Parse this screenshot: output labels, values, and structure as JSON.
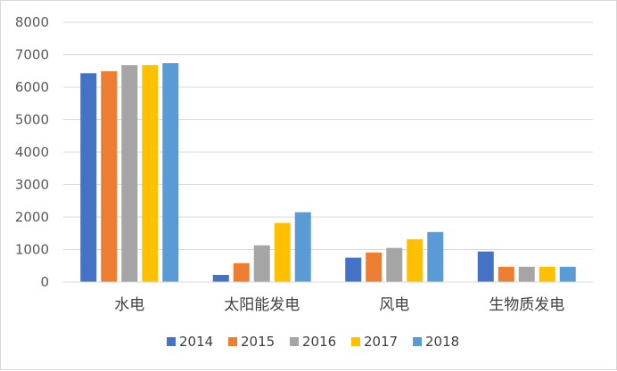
{
  "chart_data": {
    "type": "bar",
    "title": "",
    "xlabel": "",
    "ylabel": "",
    "categories": [
      "水电",
      "太阳能发电",
      "风电",
      "生物质发电"
    ],
    "series": [
      {
        "name": "2014",
        "color": "#4472c4",
        "values": [
          6430,
          220,
          750,
          940
        ]
      },
      {
        "name": "2015",
        "color": "#ed7d31",
        "values": [
          6490,
          580,
          910,
          470
        ]
      },
      {
        "name": "2016",
        "color": "#a5a5a5",
        "values": [
          6680,
          1130,
          1050,
          470
        ]
      },
      {
        "name": "2017",
        "color": "#ffc000",
        "values": [
          6680,
          1820,
          1320,
          470
        ]
      },
      {
        "name": "2018",
        "color": "#5b9bd5",
        "values": [
          6740,
          2150,
          1540,
          470
        ]
      }
    ],
    "yticks": [
      "0",
      "1000",
      "2000",
      "3000",
      "4000",
      "5000",
      "6000",
      "7000",
      "8000"
    ],
    "ylim": [
      0,
      8000
    ],
    "grid": true,
    "legend_position": "bottom"
  }
}
